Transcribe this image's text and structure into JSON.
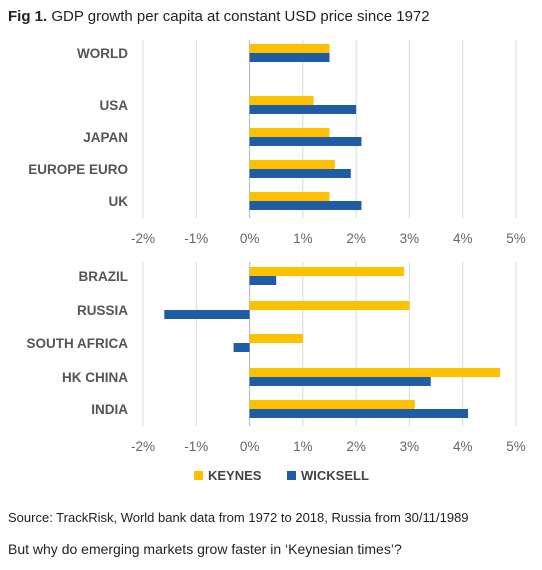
{
  "title": {
    "prefix": "Fig 1.",
    "text": "GDP growth per capita at constant USD price since 1972"
  },
  "colors": {
    "keynes": "#FFC000",
    "wicksell": "#1F5CA6",
    "grid": "#d9d9d9",
    "axis": "#bfbfbf"
  },
  "legend": {
    "keynes": "KEYNES",
    "wicksell": "WICKSELL"
  },
  "chart_data": [
    {
      "type": "bar",
      "orientation": "horizontal",
      "categories": [
        "WORLD",
        "USA",
        "JAPAN",
        "EUROPE EURO",
        "UK"
      ],
      "series": [
        {
          "name": "KEYNES",
          "values": [
            1.5,
            1.2,
            1.5,
            1.6,
            1.5
          ]
        },
        {
          "name": "WICKSELL",
          "values": [
            1.5,
            2.0,
            2.1,
            1.9,
            2.1
          ]
        }
      ],
      "xlim": [
        -2,
        5
      ],
      "ticks": [
        "-2%",
        "-1%",
        "0%",
        "1%",
        "2%",
        "3%",
        "4%",
        "5%"
      ],
      "grid": true
    },
    {
      "type": "bar",
      "orientation": "horizontal",
      "categories": [
        "BRAZIL",
        "RUSSIA",
        "SOUTH AFRICA",
        "HK CHINA",
        "INDIA"
      ],
      "series": [
        {
          "name": "KEYNES",
          "values": [
            2.9,
            3.0,
            1.0,
            4.7,
            3.1
          ]
        },
        {
          "name": "WICKSELL",
          "values": [
            0.5,
            -1.6,
            -0.3,
            3.4,
            4.1
          ]
        }
      ],
      "xlim": [
        -2,
        5
      ],
      "ticks": [
        "-2%",
        "-1%",
        "0%",
        "1%",
        "2%",
        "3%",
        "4%",
        "5%"
      ],
      "grid": true,
      "legend": "bottom"
    }
  ],
  "source": "Source: TrackRisk, World bank data from 1972 to 2018, Russia from 30/11/1989",
  "question": "But why do emerging markets grow faster in ‘Keynesian times’?"
}
